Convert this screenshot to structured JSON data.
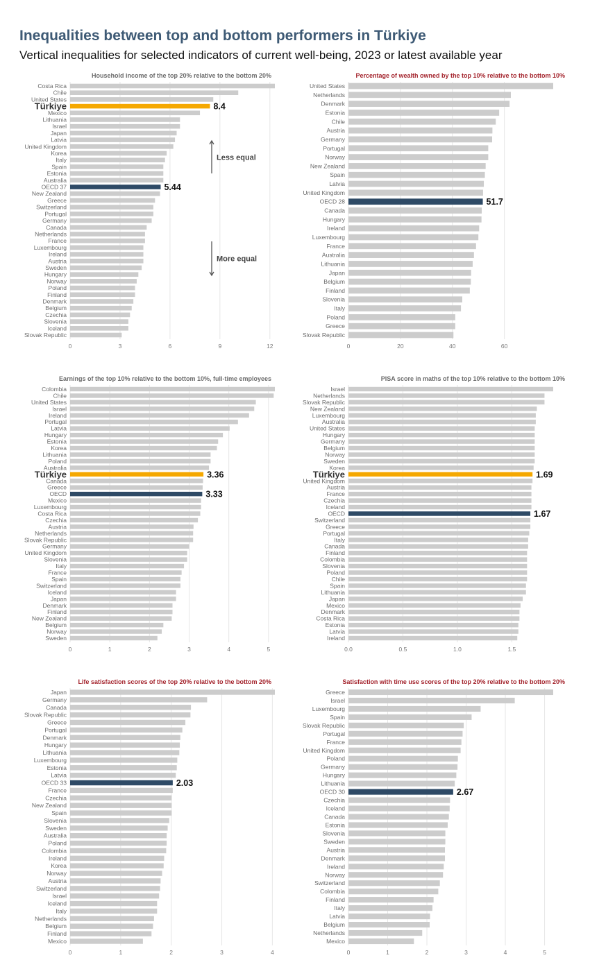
{
  "header": {
    "title": "Inequalities between top and bottom performers in Türkiye",
    "subtitle": "Vertical inequalities for selected indicators of current well-being, 2023 or latest available year"
  },
  "colors": {
    "bar": "#cccccc",
    "highlight_country": "#f5a800",
    "oecd": "#2e4a66",
    "title_gray": "#6b6b6b",
    "title_red": "#a3222b",
    "grid": "#e6e6e6"
  },
  "chart_data": [
    {
      "type": "bar",
      "orientation": "horizontal",
      "title": "Household income of the top 20% relative to the bottom 20%",
      "title_color": "gray",
      "categories": [
        "Costa Rica",
        "Chile",
        "United States",
        "Türkiye",
        "Mexico",
        "Lithuania",
        "Israel",
        "Japan",
        "Latvia",
        "United Kingdom",
        "Korea",
        "Italy",
        "Spain",
        "Estonia",
        "Australia",
        "OECD 37",
        "New Zealand",
        "Greece",
        "Switzerland",
        "Portugal",
        "Germany",
        "Canada",
        "Netherlands",
        "France",
        "Luxembourg",
        "Ireland",
        "Austria",
        "Sweden",
        "Hungary",
        "Norway",
        "Poland",
        "Finland",
        "Denmark",
        "Belgium",
        "Czechia",
        "Slovenia",
        "Iceland",
        "Slovak Republic"
      ],
      "values": [
        12.3,
        10.1,
        8.6,
        8.4,
        7.8,
        6.6,
        6.6,
        6.4,
        6.3,
        6.2,
        5.8,
        5.7,
        5.6,
        5.6,
        5.6,
        5.44,
        5.4,
        5.1,
        5.0,
        5.0,
        4.9,
        4.6,
        4.5,
        4.5,
        4.4,
        4.4,
        4.4,
        4.3,
        4.1,
        4.0,
        3.9,
        3.9,
        3.8,
        3.7,
        3.6,
        3.5,
        3.5,
        3.1
      ],
      "highlights": [
        {
          "category": "Türkiye",
          "kind": "country",
          "label": "8.4"
        },
        {
          "category": "OECD 37",
          "kind": "oecd",
          "label": "5.44"
        }
      ],
      "xticks": [
        "0",
        "3",
        "6",
        "9",
        "12"
      ],
      "xtick_values": [
        0,
        3,
        6,
        9,
        12
      ],
      "xlim": [
        0,
        12.3
      ],
      "grid": true,
      "annotations": [
        {
          "text": "Less equal",
          "arrow": "up"
        },
        {
          "text": "More equal",
          "arrow": "down"
        }
      ]
    },
    {
      "type": "bar",
      "orientation": "horizontal",
      "title": "Percentage of wealth owned by the top 10% relative to the bottom 10%",
      "title_color": "red",
      "categories": [
        "United States",
        "Netherlands",
        "Denmark",
        "Estonia",
        "Chile",
        "Austria",
        "Germany",
        "Portugal",
        "Norway",
        "New Zealand",
        "Spain",
        "Latvia",
        "United Kingdom",
        "OECD 28",
        "Canada",
        "Hungary",
        "Ireland",
        "Luxembourg",
        "France",
        "Australia",
        "Lithuania",
        "Japan",
        "Belgium",
        "Finland",
        "Slovenia",
        "Italy",
        "Poland",
        "Greece",
        "Slovak Republic"
      ],
      "values": [
        78.8,
        62.5,
        62.0,
        58.0,
        56.7,
        55.4,
        55.3,
        53.8,
        53.8,
        52.8,
        52.5,
        52.1,
        51.8,
        51.7,
        51.3,
        51.2,
        50.3,
        50.0,
        49.1,
        48.3,
        47.8,
        47.2,
        47.1,
        46.7,
        43.8,
        43.3,
        41.1,
        41.1,
        40.4
      ],
      "highlights": [
        {
          "category": "OECD 28",
          "kind": "oecd",
          "label": "51.7"
        }
      ],
      "xticks": [
        "0",
        "20",
        "40",
        "60"
      ],
      "xtick_values": [
        0,
        20,
        40,
        60
      ],
      "xlim": [
        0,
        78.8
      ],
      "grid": true
    },
    {
      "type": "bar",
      "orientation": "horizontal",
      "title": "Earnings of the top 10% relative to the bottom 10%, full-time employees",
      "title_color": "gray",
      "categories": [
        "Colombia",
        "Chile",
        "United States",
        "Israel",
        "Ireland",
        "Portugal",
        "Latvia",
        "Hungary",
        "Estonia",
        "Korea",
        "Lithuania",
        "Poland",
        "Australia",
        "Türkiye",
        "Canada",
        "Greece",
        "OECD",
        "Mexico",
        "Luxembourg",
        "Costa Rica",
        "Czechia",
        "Austria",
        "Netherlands",
        "Slovak Republic",
        "Germany",
        "United Kingdom",
        "Slovenia",
        "Italy",
        "France",
        "Spain",
        "Switzerland",
        "Iceland",
        "Japan",
        "Denmark",
        "Finland",
        "New Zealand",
        "Belgium",
        "Norway",
        "Sweden"
      ],
      "values": [
        5.16,
        5.13,
        4.68,
        4.64,
        4.51,
        4.23,
        4.02,
        3.85,
        3.73,
        3.7,
        3.54,
        3.54,
        3.5,
        3.36,
        3.35,
        3.34,
        3.33,
        3.3,
        3.3,
        3.28,
        3.22,
        3.11,
        3.1,
        3.1,
        3.0,
        2.95,
        2.95,
        2.87,
        2.81,
        2.78,
        2.78,
        2.67,
        2.67,
        2.58,
        2.58,
        2.56,
        2.35,
        2.31,
        2.2
      ],
      "highlights": [
        {
          "category": "Türkiye",
          "kind": "country",
          "label": "3.36"
        },
        {
          "category": "OECD",
          "kind": "oecd",
          "label": "3.33"
        }
      ],
      "xticks": [
        "0",
        "1",
        "2",
        "3",
        "4",
        "5"
      ],
      "xtick_values": [
        0,
        1,
        2,
        3,
        4,
        5
      ],
      "xlim": [
        0,
        5.16
      ],
      "grid": true
    },
    {
      "type": "bar",
      "orientation": "horizontal",
      "title": "PISA score in maths of the top 10% relative to the bottom 10%",
      "title_color": "gray",
      "categories": [
        "Israel",
        "Netherlands",
        "Slovak Republic",
        "New Zealand",
        "Luxembourg",
        "Australia",
        "United States",
        "Hungary",
        "Germany",
        "Belgium",
        "Norway",
        "Sweden",
        "Korea",
        "Türkiye",
        "United Kingdom",
        "Austria",
        "France",
        "Czechia",
        "Iceland",
        "OECD",
        "Switzerland",
        "Greece",
        "Portugal",
        "Italy",
        "Canada",
        "Finland",
        "Colombia",
        "Slovenia",
        "Poland",
        "Chile",
        "Spain",
        "Lithuania",
        "Japan",
        "Mexico",
        "Denmark",
        "Costa Rica",
        "Estonia",
        "Latvia",
        "Ireland"
      ],
      "values": [
        1.88,
        1.8,
        1.8,
        1.73,
        1.72,
        1.72,
        1.71,
        1.71,
        1.71,
        1.71,
        1.71,
        1.71,
        1.7,
        1.69,
        1.69,
        1.68,
        1.68,
        1.68,
        1.68,
        1.67,
        1.67,
        1.67,
        1.66,
        1.65,
        1.65,
        1.64,
        1.64,
        1.64,
        1.64,
        1.64,
        1.63,
        1.63,
        1.6,
        1.58,
        1.57,
        1.57,
        1.56,
        1.56,
        1.55
      ],
      "highlights": [
        {
          "category": "Türkiye",
          "kind": "country",
          "label": "1.69"
        },
        {
          "category": "OECD",
          "kind": "oecd",
          "label": "1.67"
        }
      ],
      "xticks": [
        "0.0",
        "0.5",
        "1.0",
        "1.5"
      ],
      "xtick_values": [
        0,
        0.5,
        1.0,
        1.5
      ],
      "xlim": [
        0,
        1.88
      ],
      "grid": true
    },
    {
      "type": "bar",
      "orientation": "horizontal",
      "title": "Life satisfaction scores of the top 20% relative to the bottom 20%",
      "title_color": "red",
      "categories": [
        "Japan",
        "Germany",
        "Canada",
        "Slovak Republic",
        "Greece",
        "Portugal",
        "Denmark",
        "Hungary",
        "Lithuania",
        "Luxembourg",
        "Estonia",
        "Latvia",
        "OECD 33",
        "France",
        "Czechia",
        "New Zealand",
        "Spain",
        "Slovenia",
        "Sweden",
        "Australia",
        "Poland",
        "Colombia",
        "Ireland",
        "Korea",
        "Norway",
        "Austria",
        "Switzerland",
        "Israel",
        "Iceland",
        "Italy",
        "Netherlands",
        "Belgium",
        "Finland",
        "Mexico"
      ],
      "values": [
        4.05,
        2.71,
        2.39,
        2.38,
        2.28,
        2.22,
        2.18,
        2.17,
        2.16,
        2.12,
        2.11,
        2.09,
        2.03,
        2.03,
        2.01,
        2.01,
        2.01,
        1.96,
        1.93,
        1.91,
        1.91,
        1.9,
        1.86,
        1.85,
        1.82,
        1.79,
        1.78,
        1.76,
        1.72,
        1.72,
        1.66,
        1.64,
        1.61,
        1.44
      ],
      "highlights": [
        {
          "category": "OECD 33",
          "kind": "oecd",
          "label": "2.03"
        }
      ],
      "xticks": [
        "0",
        "1",
        "2",
        "3",
        "4"
      ],
      "xtick_values": [
        0,
        1,
        2,
        3,
        4
      ],
      "xlim": [
        0,
        4.05
      ],
      "grid": true
    },
    {
      "type": "bar",
      "orientation": "horizontal",
      "title": "Satisfaction with time use scores of the top 20% relative to the bottom 20%",
      "title_color": "red",
      "categories": [
        "Greece",
        "Israel",
        "Luxembourg",
        "Spain",
        "Slovak Republic",
        "Portugal",
        "France",
        "United Kingdom",
        "Poland",
        "Germany",
        "Hungary",
        "Lithuania",
        "OECD 30",
        "Czechia",
        "Iceland",
        "Canada",
        "Estonia",
        "Slovenia",
        "Sweden",
        "Austria",
        "Denmark",
        "Ireland",
        "Norway",
        "Switzerland",
        "Colombia",
        "Finland",
        "Italy",
        "Latvia",
        "Belgium",
        "Netherlands",
        "Mexico"
      ],
      "values": [
        5.22,
        4.24,
        3.37,
        3.14,
        2.94,
        2.91,
        2.88,
        2.86,
        2.79,
        2.78,
        2.75,
        2.71,
        2.67,
        2.59,
        2.58,
        2.56,
        2.53,
        2.47,
        2.47,
        2.46,
        2.46,
        2.43,
        2.41,
        2.33,
        2.29,
        2.17,
        2.14,
        2.08,
        2.07,
        1.88,
        1.67
      ],
      "highlights": [
        {
          "category": "OECD 30",
          "kind": "oecd",
          "label": "2.67"
        }
      ],
      "xticks": [
        "0",
        "1",
        "2",
        "3",
        "4",
        "5"
      ],
      "xtick_values": [
        0,
        1,
        2,
        3,
        4,
        5
      ],
      "xlim": [
        0,
        5.22
      ],
      "grid": true
    }
  ]
}
